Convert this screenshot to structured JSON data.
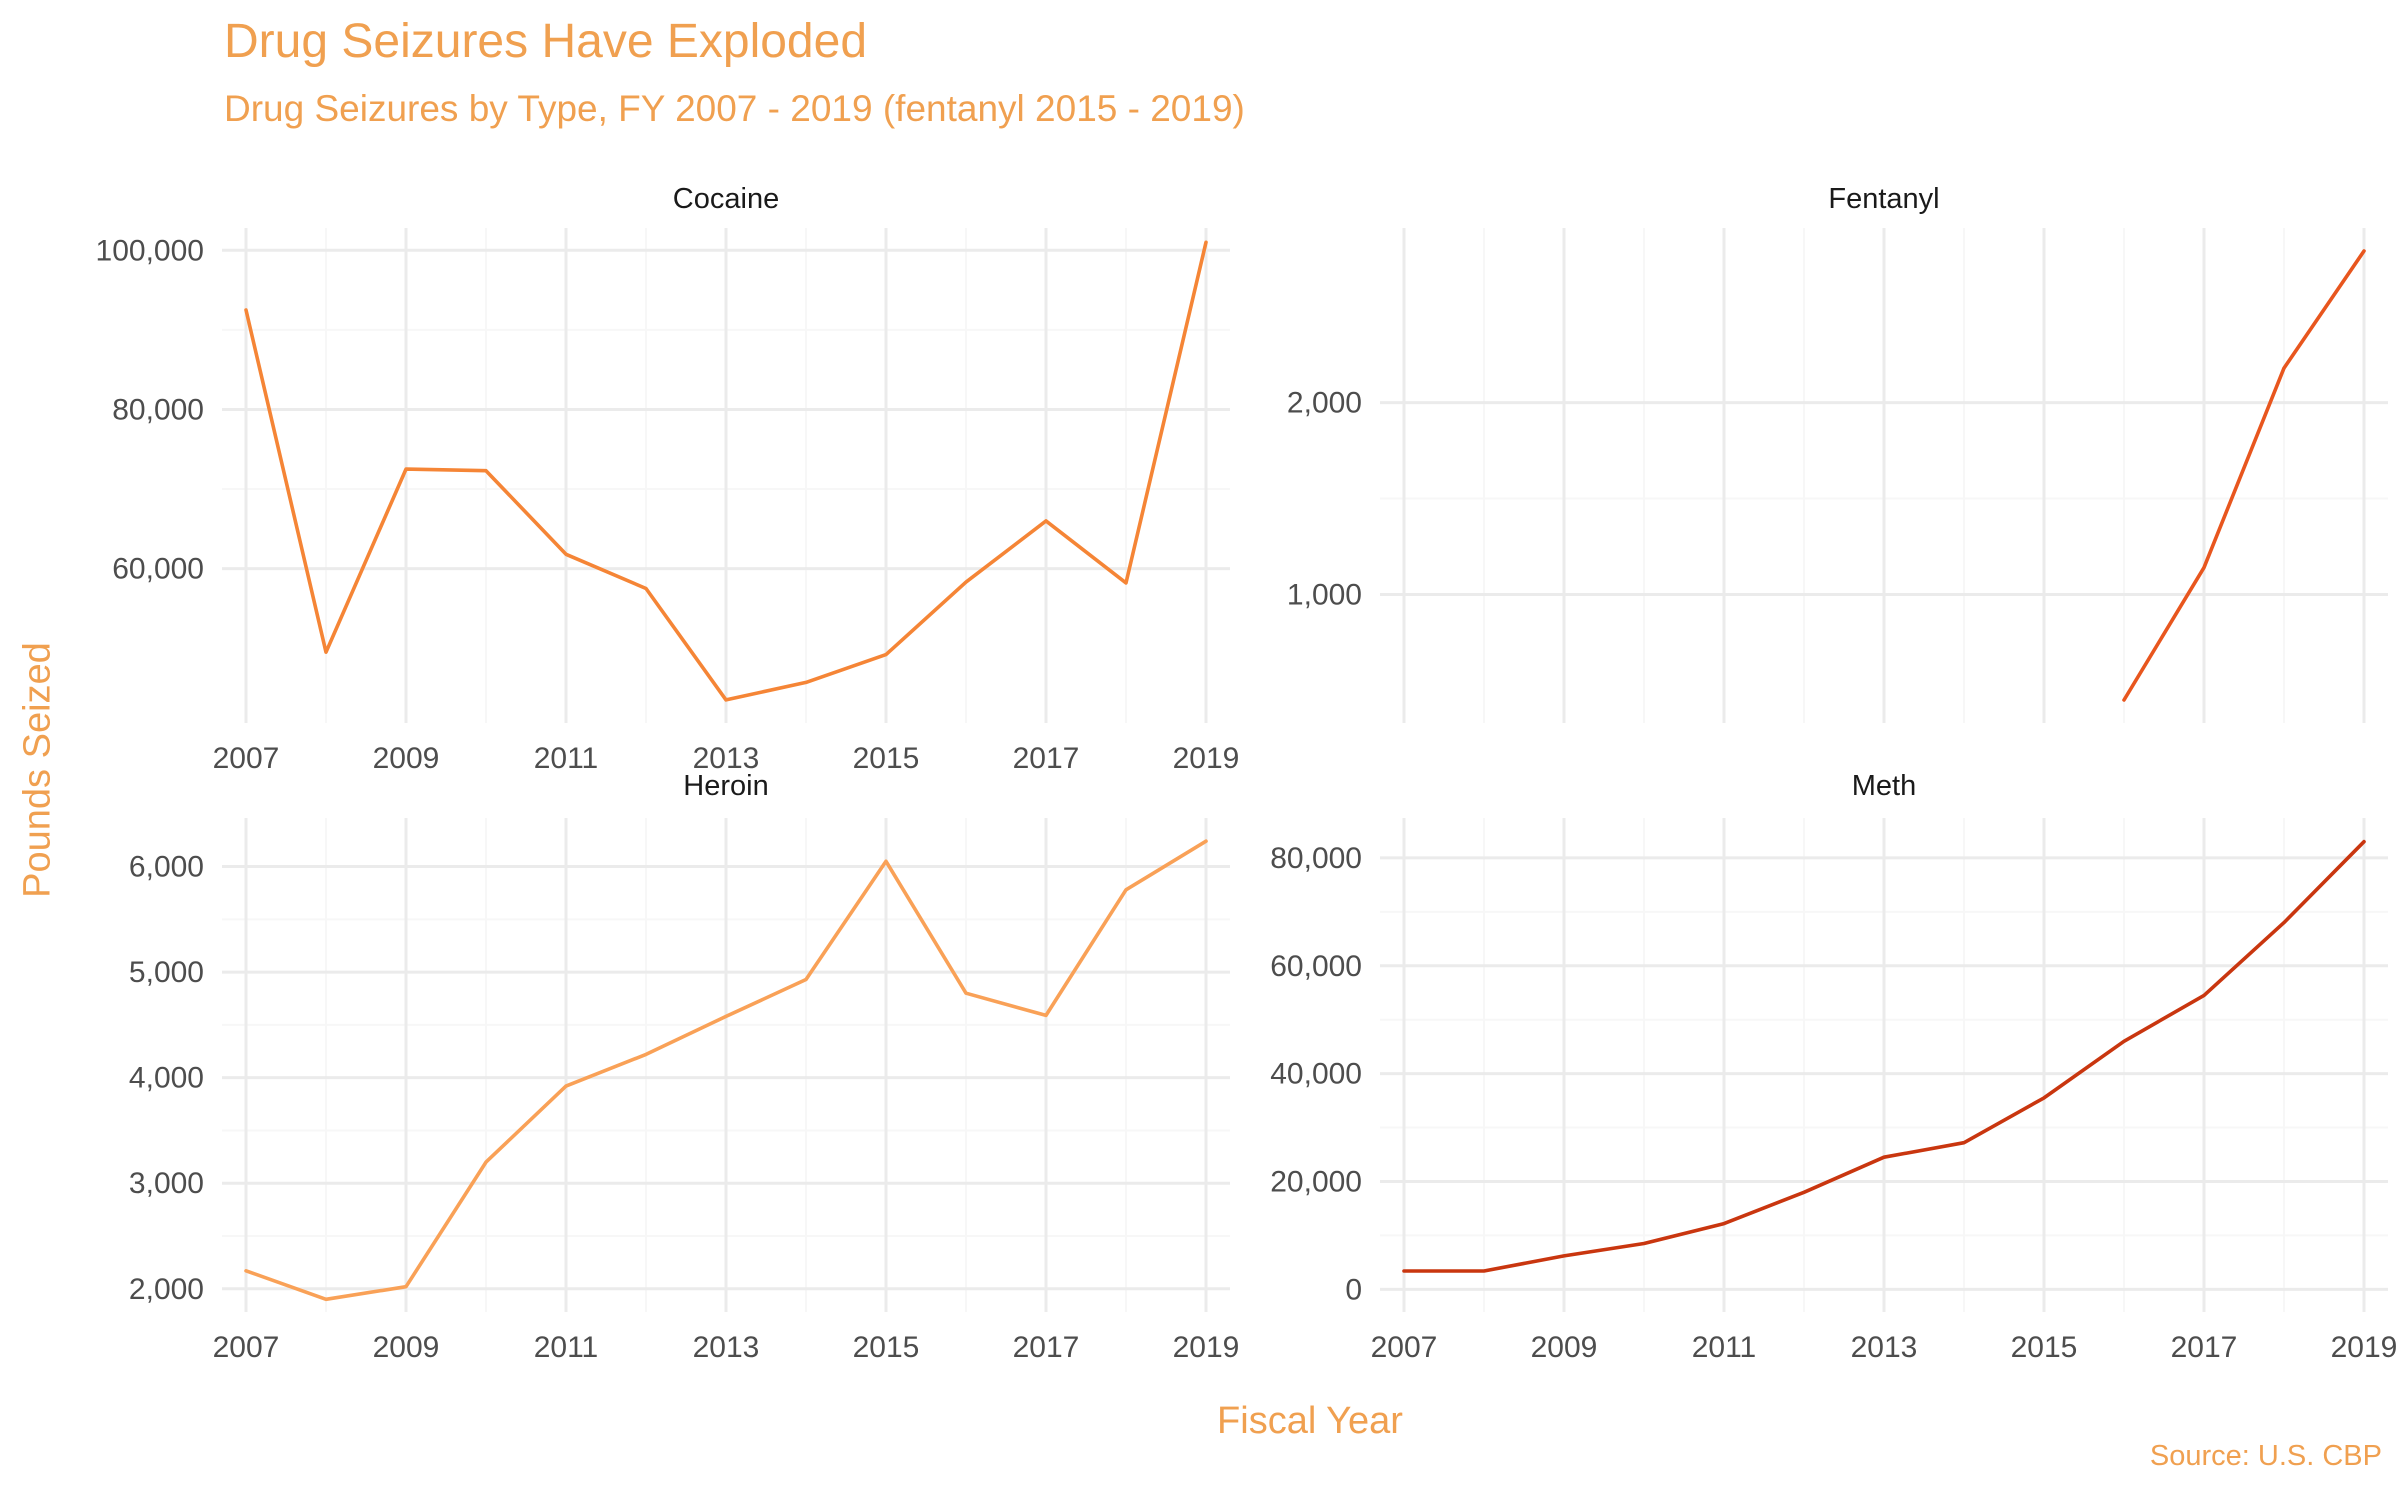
{
  "title": "Drug Seizures Have Exploded",
  "subtitle": "Drug Seizures by Type, FY 2007 - 2019 (fentanyl 2015 - 2019)",
  "ylabel": "Pounds Seized",
  "xlabel": "Fiscal Year",
  "caption": "Source: U.S. CBP",
  "chart_data": [
    {
      "type": "line",
      "panel": "Cocaine",
      "color": "#F58536",
      "x": [
        2007,
        2008,
        2009,
        2010,
        2011,
        2012,
        2013,
        2014,
        2015,
        2016,
        2017,
        2018,
        2019
      ],
      "y": [
        92500,
        49500,
        72500,
        72300,
        61800,
        57500,
        43500,
        45700,
        49200,
        58300,
        66000,
        58200,
        101000
      ],
      "ylim": [
        40600,
        102800
      ],
      "yticks": [
        60000,
        80000,
        100000
      ],
      "ytick_labels": [
        "60,000",
        "80,000",
        "100,000"
      ],
      "xticks": [
        2007,
        2009,
        2011,
        2013,
        2015,
        2017,
        2019
      ],
      "xtick_labels": [
        "2007",
        "2009",
        "2011",
        "2013",
        "2015",
        "2017",
        "2019"
      ]
    },
    {
      "type": "line",
      "panel": "Fentanyl",
      "color": "#E8561E",
      "x": [
        2016,
        2017,
        2018,
        2019
      ],
      "y": [
        450,
        1140,
        2180,
        2790
      ],
      "ylim": [
        330,
        2910
      ],
      "yticks": [
        1000,
        2000
      ],
      "ytick_labels": [
        "1,000",
        "2,000"
      ],
      "xticks": [
        2007,
        2009,
        2011,
        2013,
        2015,
        2017,
        2019
      ],
      "xtick_labels": []
    },
    {
      "type": "line",
      "panel": "Heroin",
      "color": "#F9A157",
      "x": [
        2007,
        2008,
        2009,
        2010,
        2011,
        2012,
        2013,
        2014,
        2015,
        2016,
        2017,
        2018,
        2019
      ],
      "y": [
        2170,
        1900,
        2020,
        3200,
        3920,
        4220,
        4580,
        4930,
        6050,
        4800,
        4590,
        5780,
        6240
      ],
      "ylim": [
        1780,
        6460
      ],
      "yticks": [
        2000,
        3000,
        4000,
        5000,
        6000
      ],
      "ytick_labels": [
        "2,000",
        "3,000",
        "4,000",
        "5,000",
        "6,000"
      ],
      "xticks": [
        2007,
        2009,
        2011,
        2013,
        2015,
        2017,
        2019
      ],
      "xtick_labels": [
        "2007",
        "2009",
        "2011",
        "2013",
        "2015",
        "2017",
        "2019"
      ]
    },
    {
      "type": "line",
      "panel": "Meth",
      "color": "#C9360F",
      "x": [
        2007,
        2008,
        2009,
        2010,
        2011,
        2012,
        2013,
        2014,
        2015,
        2016,
        2017,
        2018,
        2019
      ],
      "y": [
        3400,
        3400,
        6200,
        8500,
        12200,
        18000,
        24500,
        27200,
        35500,
        46000,
        54500,
        68000,
        83000
      ],
      "ylim": [
        -4200,
        87400
      ],
      "yticks": [
        0,
        20000,
        40000,
        60000,
        80000
      ],
      "ytick_labels": [
        "0",
        "20,000",
        "40,000",
        "60,000",
        "80,000"
      ],
      "xticks": [
        2007,
        2009,
        2011,
        2013,
        2015,
        2017,
        2019
      ],
      "xtick_labels": [
        "2007",
        "2009",
        "2011",
        "2013",
        "2015",
        "2017",
        "2019"
      ]
    }
  ]
}
